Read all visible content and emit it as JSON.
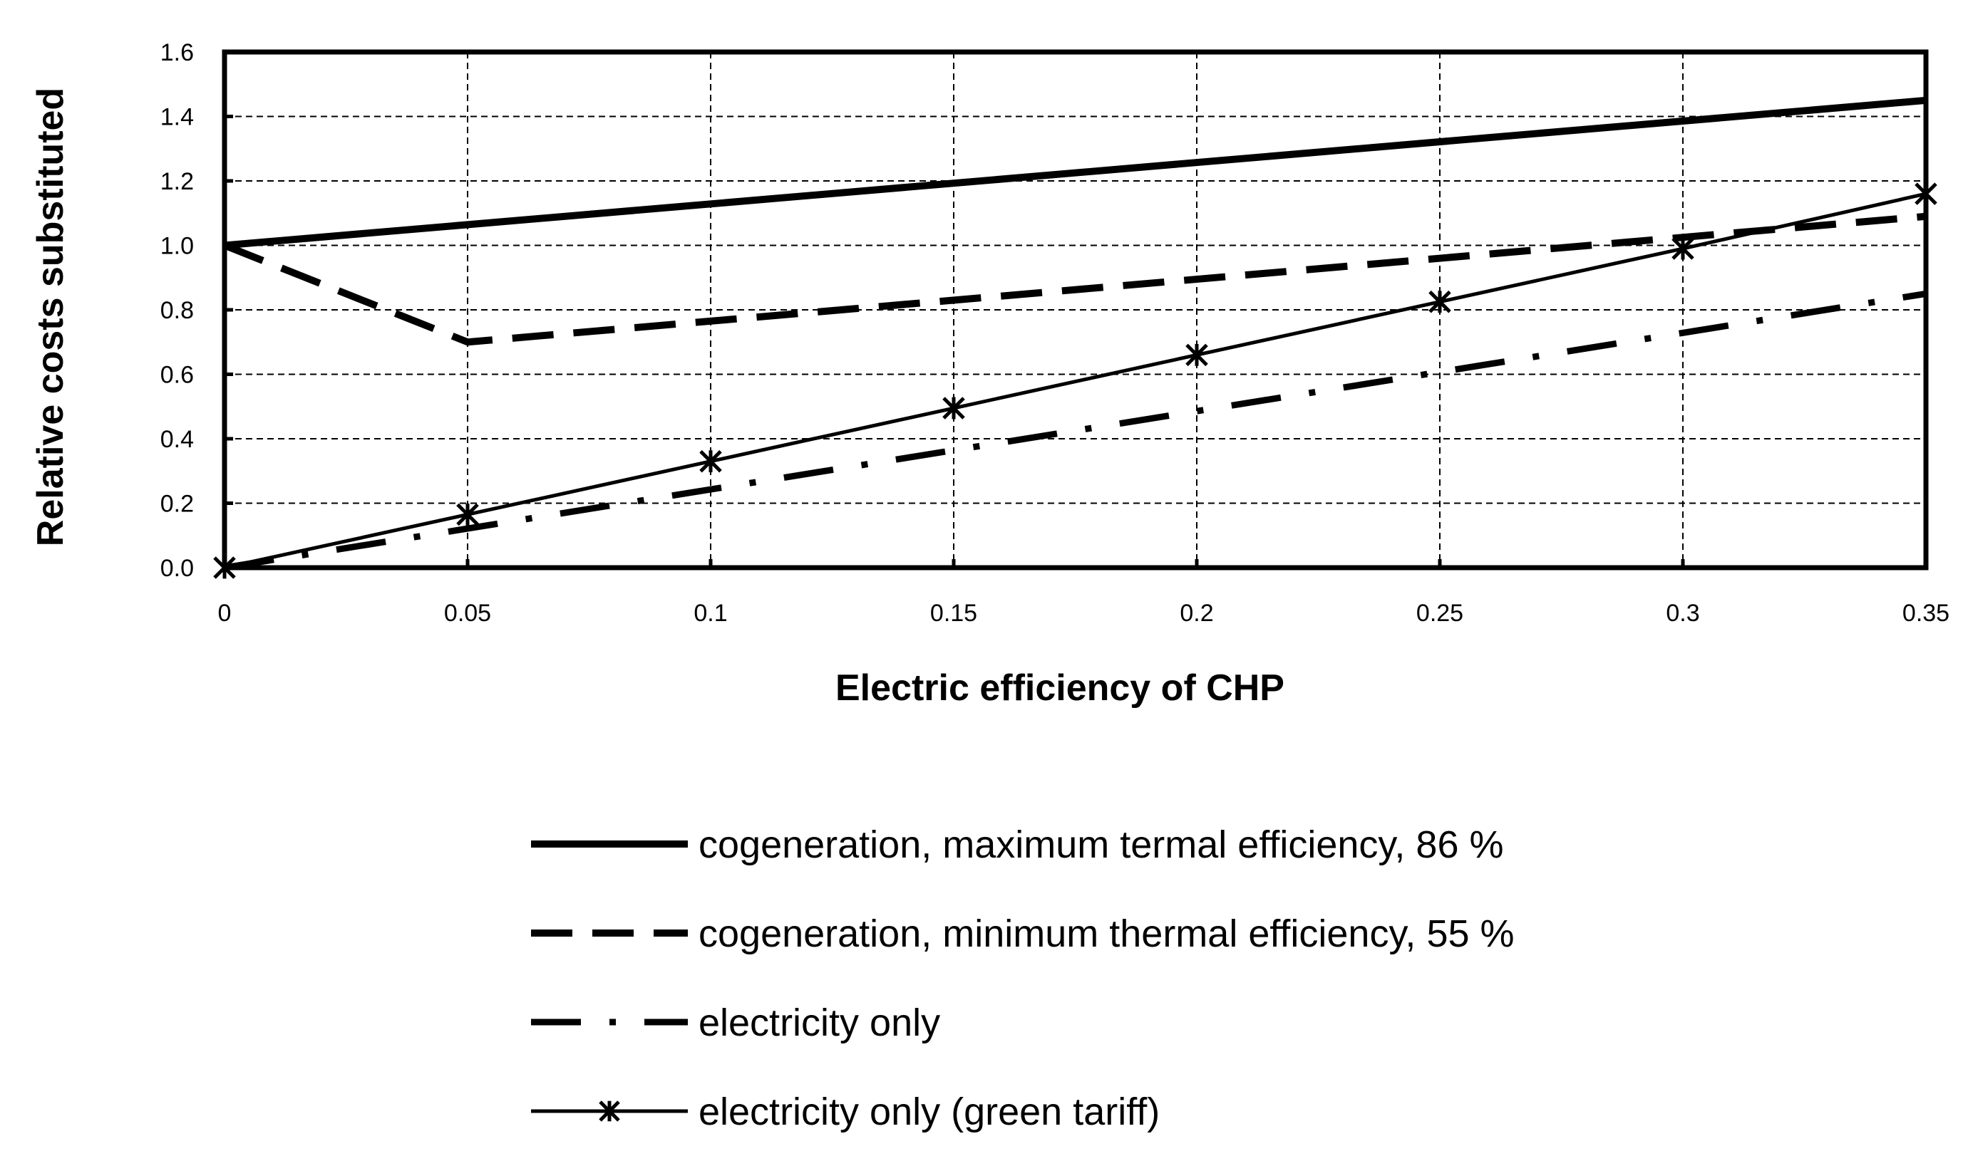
{
  "chart_data": {
    "type": "line",
    "title": "",
    "xlabel": "Electric efficiency of CHP",
    "ylabel": "Relative costs substituted",
    "xlim": [
      0,
      0.35
    ],
    "ylim": [
      0,
      1.6
    ],
    "grid": true,
    "legend_position": "bottom",
    "x_ticks": [
      0,
      0.05,
      0.1,
      0.15,
      0.2,
      0.25,
      0.3,
      0.35
    ],
    "x_tick_labels": [
      "0",
      "0.05",
      "0.1",
      "0.15",
      "0.2",
      "0.25",
      "0.3",
      "0.35"
    ],
    "y_ticks": [
      0,
      0.2,
      0.4,
      0.6,
      0.8,
      1.0,
      1.2,
      1.4,
      1.6
    ],
    "y_tick_labels": [
      "0.0",
      "0.2",
      "0.4",
      "0.6",
      "0.8",
      "1.0",
      "1.2",
      "1.4",
      "1.6"
    ],
    "series": [
      {
        "name": "cogeneration, maximum termal efficiency, 86 %",
        "style": "solid-thick",
        "x": [
          0,
          0.35
        ],
        "values": [
          1.0,
          1.45
        ]
      },
      {
        "name": "cogeneration, minimum thermal efficiency, 55 %",
        "style": "dashed",
        "x": [
          0,
          0.05,
          0.35
        ],
        "values": [
          1.0,
          0.7,
          1.09
        ]
      },
      {
        "name": "electricity only",
        "style": "dash-dot",
        "x": [
          0,
          0.35
        ],
        "values": [
          0.0,
          0.85
        ]
      },
      {
        "name": "electricity only (green tariff)",
        "style": "solid-star",
        "x": [
          0,
          0.05,
          0.1,
          0.15,
          0.2,
          0.25,
          0.3,
          0.35
        ],
        "values": [
          0.0,
          0.165,
          0.33,
          0.495,
          0.66,
          0.825,
          0.99,
          1.16
        ]
      }
    ]
  }
}
